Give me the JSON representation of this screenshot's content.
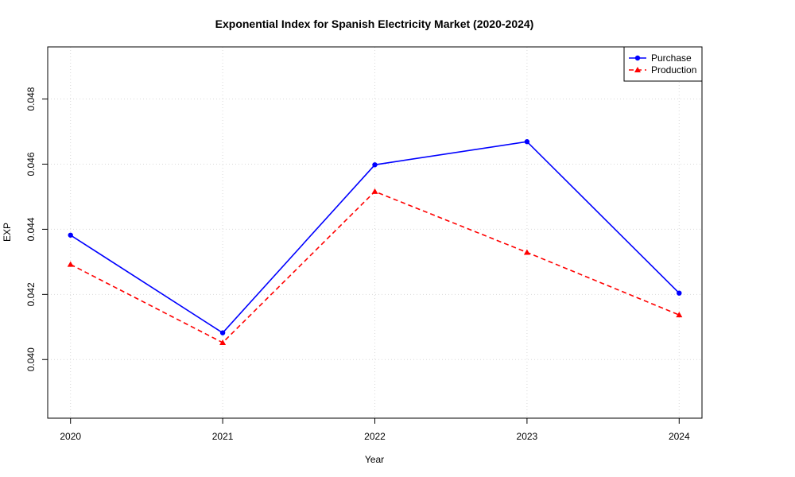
{
  "chart_data": {
    "type": "line",
    "title": "Exponential Index for Spanish Electricity Market (2020-2024)",
    "xlabel": "Year",
    "ylabel": "EXP",
    "x": [
      2020,
      2021,
      2022,
      2023,
      2024
    ],
    "x_tick_labels": [
      "2020",
      "2021",
      "2022",
      "2023",
      "2024"
    ],
    "y_ticks": [
      0.04,
      0.042,
      0.044,
      0.046,
      0.048
    ],
    "y_tick_labels": [
      "0.040",
      "0.042",
      "0.044",
      "0.046",
      "0.048"
    ],
    "xlim": [
      2019.85,
      2024.15
    ],
    "ylim": [
      0.0382,
      0.0496
    ],
    "grid": true,
    "legend_position": "top-right",
    "series": [
      {
        "name": "Purchase",
        "values": [
          0.04382,
          0.04082,
          0.04598,
          0.04669,
          0.04204
        ],
        "color": "#0000ff",
        "line_style": "solid",
        "marker": "circle"
      },
      {
        "name": "Production",
        "values": [
          0.04292,
          0.04052,
          0.04516,
          0.04329,
          0.04137
        ],
        "color": "#ff0000",
        "line_style": "dashed",
        "marker": "triangle"
      }
    ]
  }
}
